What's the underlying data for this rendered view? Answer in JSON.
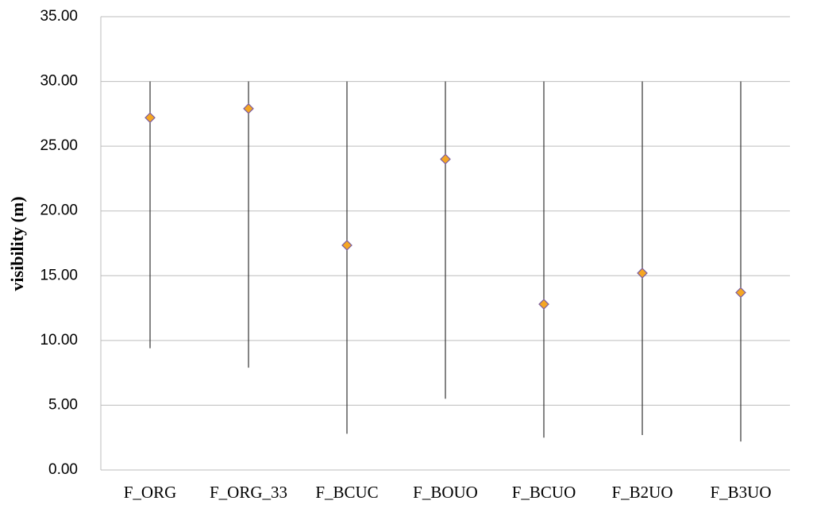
{
  "chart_data": {
    "type": "high-low-mean",
    "y_label": "visibility (m)",
    "categories": [
      "F_ORG",
      "F_ORG_33",
      "F_BCUC",
      "F_BOUO",
      "F_BCUO",
      "F_B2UO",
      "F_B3UO"
    ],
    "high": [
      30,
      30,
      30,
      30,
      30,
      30,
      30
    ],
    "low": [
      9.4,
      7.9,
      2.8,
      5.5,
      2.5,
      2.7,
      2.2
    ],
    "values": [
      27.2,
      27.9,
      17.35,
      24.0,
      12.8,
      15.2,
      13.7
    ],
    "color": "#f5a623",
    "ylim": [
      0,
      35
    ],
    "yticks": [
      {
        "value": 0,
        "label": "0.00"
      },
      {
        "value": 5,
        "label": "5.00"
      },
      {
        "value": 10,
        "label": "10.00"
      },
      {
        "value": 15,
        "label": "15.00"
      },
      {
        "value": 20,
        "label": "20.00"
      },
      {
        "value": 25,
        "label": "25.00"
      },
      {
        "value": 30,
        "label": "30.00"
      },
      {
        "value": 35,
        "label": "35.00"
      }
    ],
    "grid": true
  }
}
